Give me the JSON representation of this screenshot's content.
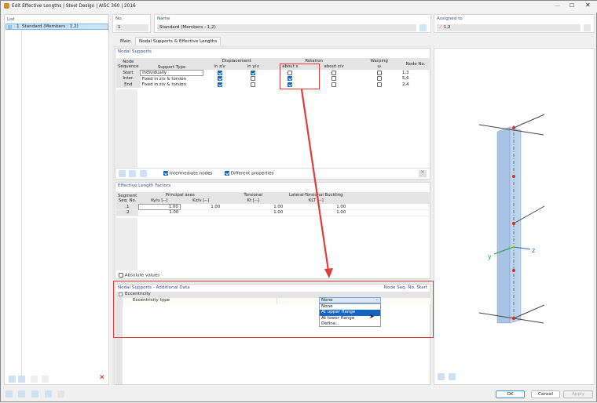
{
  "window": {
    "title": "Edit Effective Lengths | Steel Design | AISC 360 | 2016"
  },
  "list": {
    "label": "List",
    "items": [
      {
        "no": "1",
        "label": "Standard (Members : 1,2)"
      }
    ]
  },
  "header": {
    "no_label": "No.",
    "no_value": "1",
    "name_label": "Name",
    "name_value": "Standard (Members : 1,2)",
    "assigned_label": "Assigned to",
    "assigned_value": "1,2"
  },
  "tabs": [
    {
      "label": "Main",
      "active": false
    },
    {
      "label": "Nodal Supports & Effective Lengths",
      "active": true
    }
  ],
  "nodal_supports": {
    "title": "Nodal Supports",
    "headers": {
      "seq": "Node Sequence",
      "type": "Support Type",
      "disp": "Displacement",
      "disp_z": "in z/v",
      "disp_y": "in y/u",
      "rot": "Rotation",
      "rot_x": "about x",
      "rot_z": "about z/v",
      "warp": "Warping",
      "warp_w": "ω",
      "node": "Node No."
    },
    "rows": [
      {
        "seq": "Start",
        "type": "Individually",
        "dz": true,
        "dy": true,
        "rx": false,
        "rz": false,
        "w": false,
        "node": "1,3"
      },
      {
        "seq": "Inter.",
        "type": "Fixed in z/v & torsion",
        "dz": true,
        "dy": false,
        "rx": true,
        "rz": false,
        "w": false,
        "node": "5,6"
      },
      {
        "seq": "End",
        "type": "Fixed in z/v & torsion",
        "dz": true,
        "dy": false,
        "rx": true,
        "rz": false,
        "w": false,
        "node": "2,4"
      }
    ],
    "intermediate_nodes": "Intermediate nodes",
    "intermediate_nodes_checked": true,
    "different_properties": "Different properties",
    "different_properties_checked": true
  },
  "effective_length": {
    "title": "Effective Length Factors",
    "headers": {
      "seq": "Segment Seq. No.",
      "principal": "Principal axes",
      "ky": "Ky/u [--]",
      "kz": "Kz/v [--]",
      "torsional": "Torsional",
      "kt": "Kt [--]",
      "ltb": "Lateral-Torsional Buckling",
      "klt": "KLT [--]"
    },
    "rows": [
      {
        "seq": ".1",
        "ky": "1.00",
        "kz": "1.00",
        "kt": "1.00",
        "klt": "1.00"
      },
      {
        "seq": ".2",
        "ky": "1.00",
        "kz": "",
        "kt": "1.00",
        "klt": "1.00"
      }
    ],
    "absolute_values": "Absolute values",
    "absolute_values_checked": false
  },
  "additional": {
    "title": "Nodal Supports - Additional Data",
    "context": "Node Seq. No. Start",
    "group": "Eccentricity",
    "row_label": "Eccentricity type",
    "value": "None",
    "options": [
      "None",
      "At upper flange",
      "At lower flange",
      "Define..."
    ],
    "highlighted": "At upper flange"
  },
  "view": {
    "axis_y": "y",
    "axis_z": "z"
  },
  "footer": {
    "ok": "OK",
    "cancel": "Cancel",
    "apply": "Apply"
  },
  "colors": {
    "accent": "#1464c8",
    "highlight_red": "#e03c3c",
    "selection": "#cce4f7"
  }
}
